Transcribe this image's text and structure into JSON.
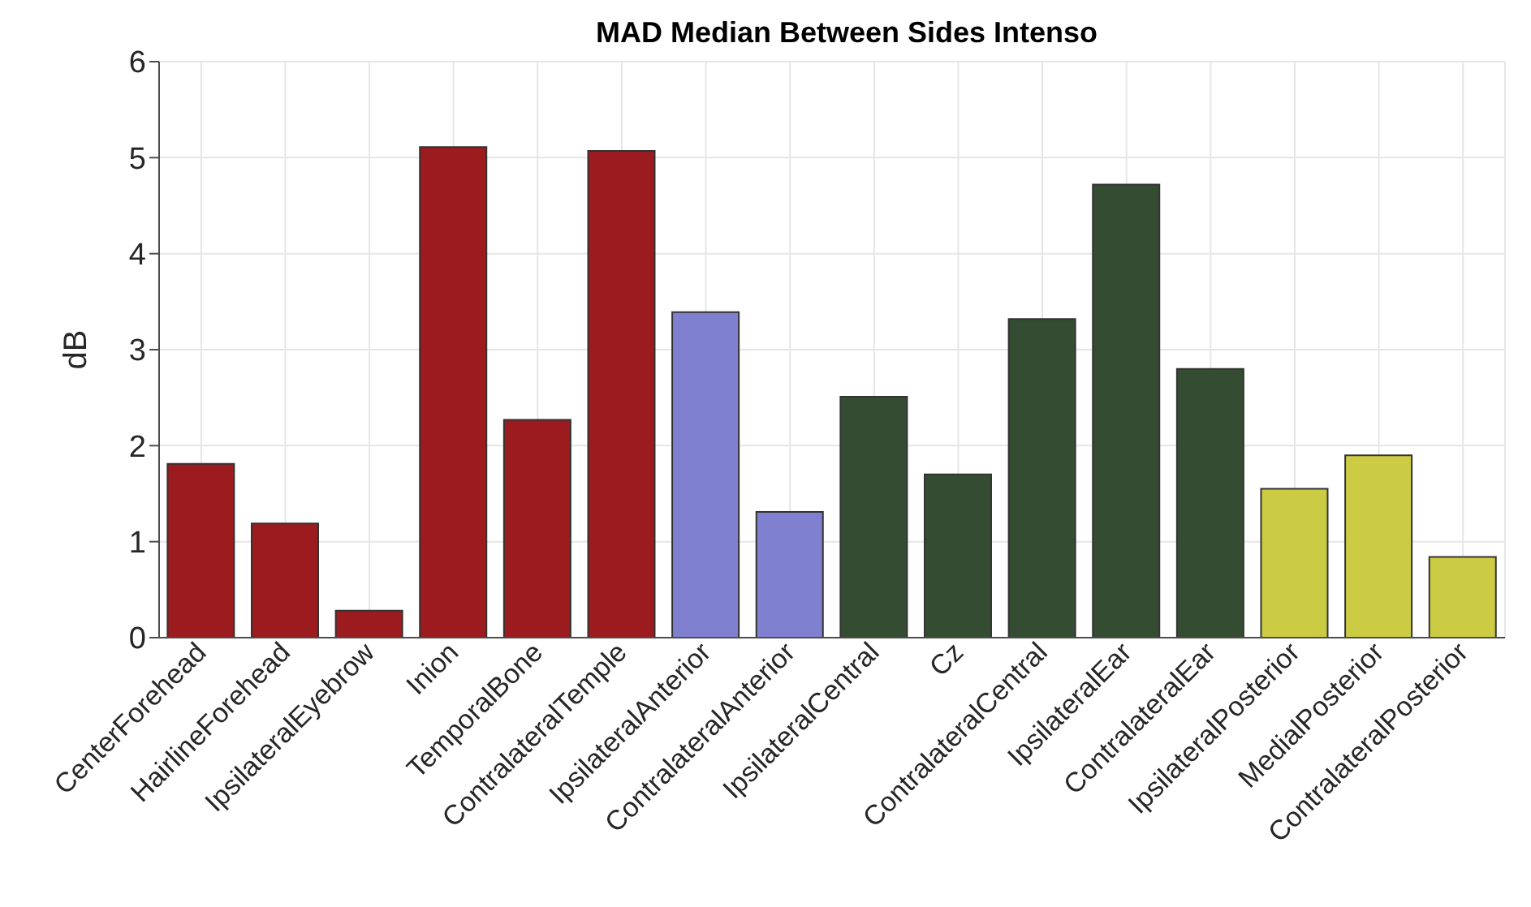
{
  "chart_data": {
    "type": "bar",
    "title": "MAD Median Between Sides Intenso",
    "ylabel": "dB",
    "categories": [
      "CenterForehead",
      "HairlineForehead",
      "IpsilateralEyebrow",
      "Inion",
      "TemporalBone",
      "ContralateralTemple",
      "IpsilateralAnterior",
      "ContralateralAnterior",
      "IpsilateralCentral",
      "Cz",
      "ContralateralCentral",
      "IpsilateralEar",
      "ContralateralEar",
      "IpsilateralPosterior",
      "MedialPosterior",
      "ContralateralPosterior"
    ],
    "values": [
      1.81,
      1.19,
      0.28,
      5.11,
      2.27,
      5.07,
      3.39,
      1.31,
      2.51,
      1.7,
      3.32,
      4.72,
      2.8,
      1.55,
      1.9,
      0.84
    ],
    "colors": [
      "#9b1b1e",
      "#9b1b1e",
      "#9b1b1e",
      "#9b1b1e",
      "#9b1b1e",
      "#9b1b1e",
      "#8080d0",
      "#8080d0",
      "#344d32",
      "#344d32",
      "#344d32",
      "#344d32",
      "#344d32",
      "#cccc44",
      "#cccc44",
      "#cccc44"
    ],
    "ylim": [
      0,
      6
    ],
    "yticks": [
      0,
      1,
      2,
      3,
      4,
      5,
      6
    ],
    "grid": true
  }
}
